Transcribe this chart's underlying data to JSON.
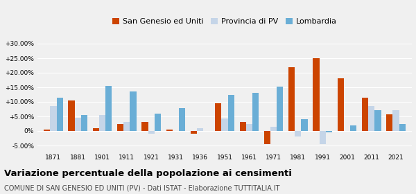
{
  "years": [
    1871,
    1881,
    1901,
    1911,
    1921,
    1931,
    1936,
    1951,
    1961,
    1971,
    1981,
    1991,
    2001,
    2011,
    2021
  ],
  "san_genesio": [
    0.5,
    10.5,
    1.0,
    2.5,
    3.0,
    0.5,
    -1.0,
    9.5,
    3.0,
    -4.5,
    22.0,
    25.0,
    18.0,
    11.5,
    5.7
  ],
  "provincia_pv": [
    8.5,
    4.5,
    5.5,
    3.0,
    -1.0,
    0.0,
    1.0,
    4.2,
    2.5,
    1.5,
    -2.0,
    -4.5,
    0.0,
    8.5,
    7.2
  ],
  "lombardia": [
    11.5,
    5.5,
    15.5,
    13.5,
    6.0,
    7.8,
    0.0,
    12.5,
    13.0,
    15.2,
    4.0,
    -0.5,
    2.0,
    7.2,
    2.5
  ],
  "color_san_genesio": "#cc4400",
  "color_provincia": "#c5d5e8",
  "color_lombardia": "#6aaed6",
  "bar_width": 0.26,
  "ylim": [
    -7,
    33
  ],
  "yticks": [
    -5,
    0,
    5,
    10,
    15,
    20,
    25,
    30
  ],
  "title": "Variazione percentuale della popolazione ai censimenti",
  "subtitle": "COMUNE DI SAN GENESIO ED UNITI (PV) - Dati ISTAT - Elaborazione TUTTITALIA.IT",
  "legend_labels": [
    "San Genesio ed Uniti",
    "Provincia di PV",
    "Lombardia"
  ],
  "bg_color": "#f0f0f0",
  "grid_color": "#ffffff"
}
